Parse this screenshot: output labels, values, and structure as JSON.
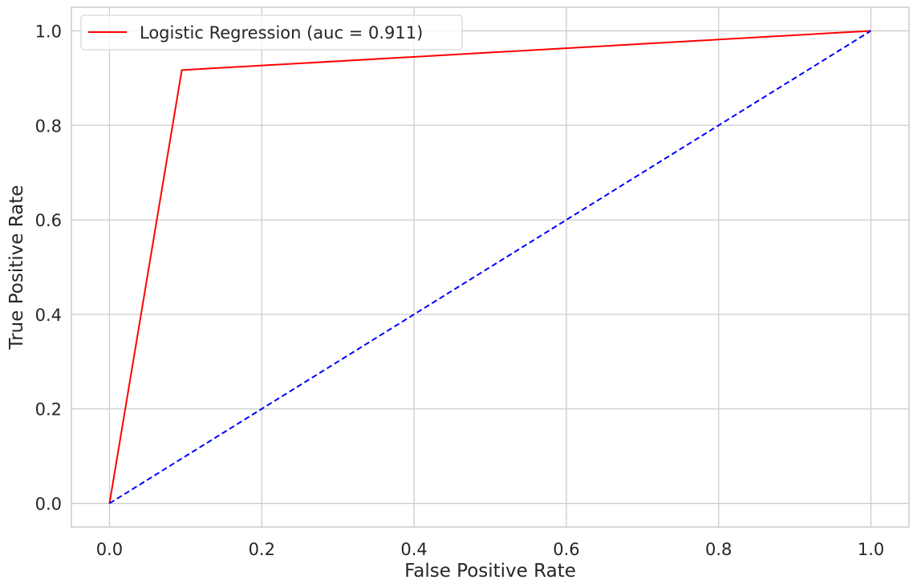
{
  "chart_data": {
    "type": "line",
    "xlabel": "False Positive Rate",
    "ylabel": "True Positive Rate",
    "xlim": [
      -0.05,
      1.05
    ],
    "ylim": [
      -0.05,
      1.05
    ],
    "xticks": [
      "0.0",
      "0.2",
      "0.4",
      "0.6",
      "0.8",
      "1.0"
    ],
    "yticks": [
      "0.0",
      "0.2",
      "0.4",
      "0.6",
      "0.8",
      "1.0"
    ],
    "grid": true,
    "legend_position": "top-left",
    "series": [
      {
        "name": "Logistic Regression (auc  = 0.911)",
        "color": "#ff0000",
        "style": "solid",
        "x": [
          0.0,
          0.095,
          1.0
        ],
        "y": [
          0.0,
          0.917,
          1.0
        ]
      },
      {
        "color": "#0000ff",
        "style": "dashed",
        "x": [
          0.0,
          1.0
        ],
        "y": [
          0.0,
          1.0
        ]
      }
    ]
  }
}
